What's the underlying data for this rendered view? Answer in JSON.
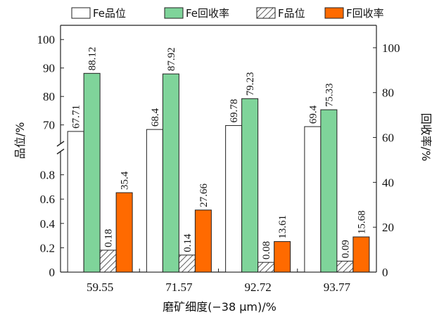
{
  "chart_data": {
    "type": "bar",
    "xlabel": "磨矿细度(−38 μm)/%",
    "ylabel_left": "品位/%",
    "ylabel_right": "回收率/%",
    "categories": [
      "59.55",
      "71.57",
      "92.72",
      "93.77"
    ],
    "series": [
      {
        "name": "Fe品位",
        "axis": "left-upper",
        "values": [
          67.71,
          68.4,
          69.78,
          69.4
        ],
        "labels": [
          "67.71",
          "68.4",
          "69.78",
          "69.4"
        ],
        "color": "#ffffff",
        "pattern": "none"
      },
      {
        "name": "Fe回收率",
        "axis": "left-upper",
        "values": [
          88.12,
          87.92,
          79.23,
          75.33
        ],
        "labels": [
          "88.12",
          "87.92",
          "79.23",
          "75.33"
        ],
        "color": "#7fd49a",
        "pattern": "none"
      },
      {
        "name": "F品位",
        "axis": "left-lower",
        "values": [
          0.18,
          0.14,
          0.08,
          0.09
        ],
        "labels": [
          "0.18",
          "0.14",
          "0.08",
          "0.09"
        ],
        "color": "#ffffff",
        "pattern": "hatch"
      },
      {
        "name": "F回收率",
        "axis": "right",
        "values": [
          35.4,
          27.66,
          13.61,
          15.68
        ],
        "labels": [
          "35.4",
          "27.66",
          "13.61",
          "15.68"
        ],
        "color": "#ff6a00",
        "pattern": "none"
      }
    ],
    "left_axis_upper": {
      "range": [
        63,
        105
      ],
      "ticks": [
        "70",
        "80",
        "90",
        "100"
      ]
    },
    "left_axis_lower": {
      "range": [
        0,
        1.0
      ],
      "ticks": [
        "0",
        "0.2",
        "0.4",
        "0.6",
        "0.8"
      ]
    },
    "right_axis": {
      "range": [
        0,
        110
      ],
      "ticks": [
        "0",
        "20",
        "40",
        "60",
        "80",
        "100"
      ]
    },
    "axis_break": "left axis broken between 0.8 and 70",
    "legend": {
      "placement": "top",
      "entries": [
        "Fe品位",
        "Fe回收率",
        "F品位",
        "F回收率"
      ]
    },
    "grid": false
  }
}
